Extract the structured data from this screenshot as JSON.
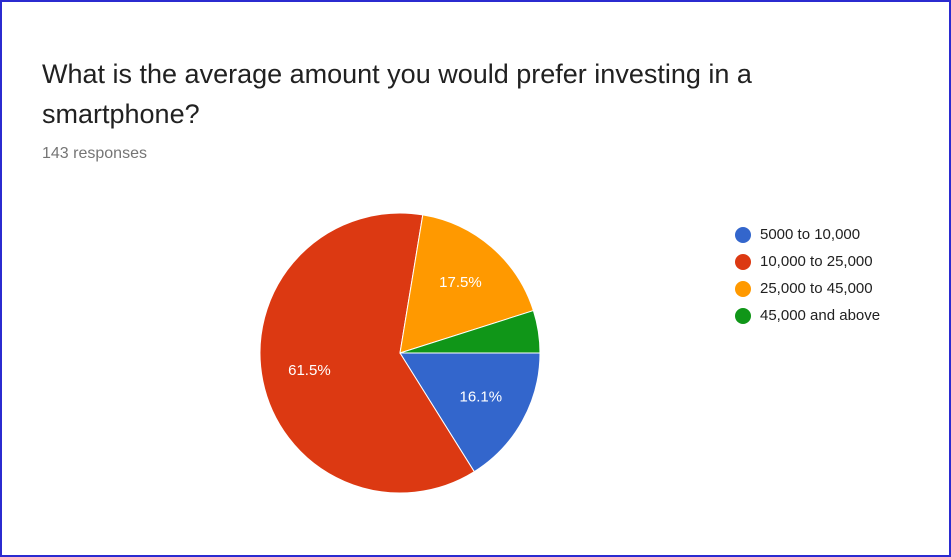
{
  "chart_data": {
    "type": "pie",
    "title": "What is the average amount you would prefer investing in a smartphone?",
    "subtitle": "143 responses",
    "categories": [
      "5000 to 10,000",
      "10,000 to 25,000",
      "25,000 to 45,000",
      "45,000 and above"
    ],
    "values": [
      16.1,
      61.5,
      17.5,
      4.9
    ],
    "value_labels": [
      "16.1%",
      "61.5%",
      "17.5%",
      null
    ],
    "colors": [
      "#3366cc",
      "#dc3912",
      "#ff9900",
      "#109618"
    ],
    "legend": "right"
  }
}
